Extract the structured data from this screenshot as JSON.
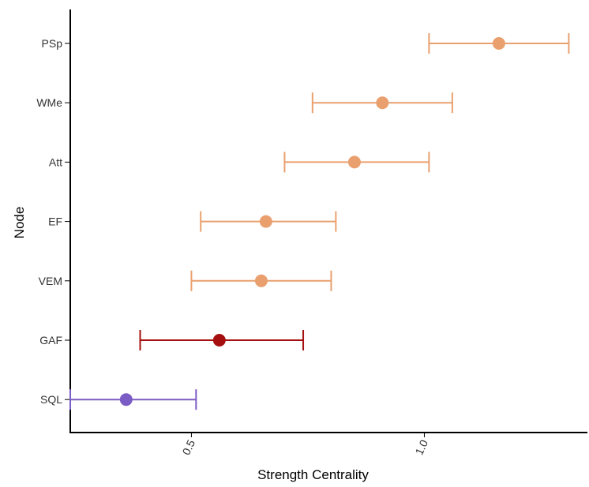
{
  "chart_data": {
    "type": "scatter",
    "title": "",
    "xlabel": "Strength Centrality",
    "ylabel": "Node",
    "xlim": [
      0.24,
      1.35
    ],
    "xticks": [
      {
        "value": 0.5,
        "label": "0.5"
      },
      {
        "value": 1.0,
        "label": "1.0"
      }
    ],
    "grid": false,
    "legend": "none",
    "error_bar_style": "horizontal interval with end caps",
    "points": [
      {
        "node": "PSp",
        "value": 1.16,
        "lower": 1.01,
        "upper": 1.31,
        "color": "#E9A06E"
      },
      {
        "node": "WMe",
        "value": 0.91,
        "lower": 0.76,
        "upper": 1.06,
        "color": "#E9A06E"
      },
      {
        "node": "Att",
        "value": 0.85,
        "lower": 0.7,
        "upper": 1.01,
        "color": "#E9A06E"
      },
      {
        "node": "EF",
        "value": 0.66,
        "lower": 0.52,
        "upper": 0.81,
        "color": "#E9A06E"
      },
      {
        "node": "VEM",
        "value": 0.65,
        "lower": 0.5,
        "upper": 0.8,
        "color": "#E9A06E"
      },
      {
        "node": "GAF",
        "value": 0.56,
        "lower": 0.39,
        "upper": 0.74,
        "color": "#A50F0F"
      },
      {
        "node": "SQL",
        "value": 0.36,
        "lower": 0.24,
        "upper": 0.51,
        "color": "#7B5CC4"
      }
    ]
  }
}
